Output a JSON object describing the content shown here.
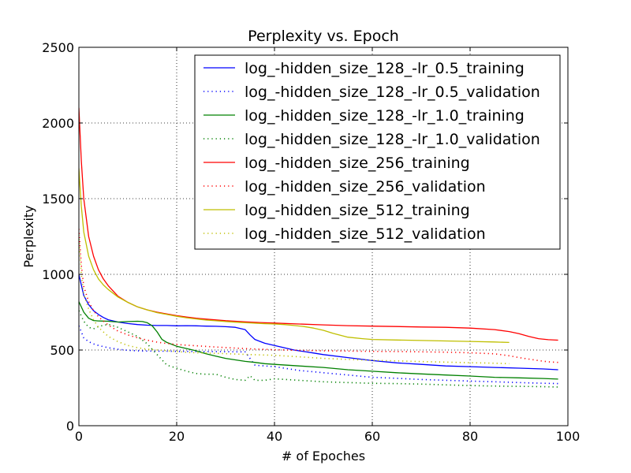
{
  "chart_data": {
    "type": "line",
    "title": "Perplexity vs. Epoch",
    "xlabel": "# of Epoches",
    "ylabel": "Perplexity",
    "xlim": [
      0,
      100
    ],
    "ylim": [
      0,
      2500
    ],
    "xticks": [
      "0",
      "20",
      "40",
      "60",
      "80",
      "100"
    ],
    "yticks": [
      "0",
      "500",
      "1000",
      "1500",
      "2000",
      "2500"
    ],
    "grid": true,
    "legend_position": "top-right",
    "series": [
      {
        "name": "log_-hidden_size_128_-lr_0.5_training",
        "color": "#0000ff",
        "style": "solid",
        "x": [
          0,
          1,
          2,
          3,
          4,
          5,
          6,
          8,
          10,
          12,
          14,
          16,
          18,
          20,
          22,
          24,
          26,
          28,
          30,
          32,
          34,
          35,
          36,
          38,
          40,
          42,
          44,
          46,
          48,
          50,
          55,
          60,
          65,
          70,
          75,
          80,
          85,
          90,
          95,
          98
        ],
        "y": [
          1000,
          860,
          800,
          760,
          735,
          715,
          700,
          685,
          675,
          668,
          664,
          662,
          662,
          660,
          661,
          660,
          658,
          657,
          654,
          650,
          635,
          600,
          570,
          545,
          530,
          515,
          500,
          490,
          480,
          470,
          450,
          430,
          415,
          405,
          395,
          390,
          385,
          380,
          375,
          370
        ]
      },
      {
        "name": "log_-hidden_size_128_-lr_0.5_validation",
        "color": "#0000ff",
        "style": "dotted",
        "x": [
          0,
          1,
          2,
          3,
          4,
          6,
          8,
          10,
          12,
          14,
          16,
          18,
          20,
          22,
          24,
          26,
          28,
          30,
          32,
          34,
          36,
          38,
          40,
          45,
          50,
          55,
          60,
          65,
          70,
          75,
          80,
          85,
          90,
          95,
          98
        ],
        "y": [
          660,
          580,
          555,
          540,
          530,
          515,
          505,
          498,
          495,
          493,
          492,
          492,
          491,
          491,
          490,
          490,
          490,
          489,
          488,
          488,
          400,
          395,
          390,
          365,
          350,
          335,
          320,
          313,
          305,
          300,
          295,
          290,
          285,
          280,
          278
        ]
      },
      {
        "name": "log_-hidden_size_128_-lr_1.0_training",
        "color": "#008000",
        "style": "solid",
        "x": [
          0,
          1,
          2,
          3,
          4,
          6,
          8,
          10,
          12,
          13,
          14,
          15,
          16,
          17,
          18,
          20,
          22,
          24,
          26,
          28,
          30,
          32,
          34,
          36,
          38,
          40,
          45,
          50,
          55,
          60,
          65,
          70,
          75,
          80,
          85,
          90,
          95,
          98
        ],
        "y": [
          820,
          750,
          710,
          695,
          692,
          690,
          685,
          688,
          690,
          688,
          680,
          660,
          620,
          570,
          550,
          525,
          510,
          495,
          475,
          460,
          445,
          435,
          425,
          418,
          410,
          405,
          395,
          385,
          370,
          360,
          350,
          342,
          335,
          328,
          320,
          316,
          312,
          308
        ]
      },
      {
        "name": "log_-hidden_size_128_-lr_1.0_validation",
        "color": "#008000",
        "style": "dotted",
        "x": [
          0,
          1,
          2,
          3,
          4,
          6,
          8,
          10,
          12,
          14,
          16,
          18,
          20,
          22,
          24,
          26,
          28,
          30,
          32,
          34,
          35,
          36,
          38,
          40,
          45,
          50,
          55,
          60,
          65,
          70,
          75,
          80,
          85,
          90,
          95,
          98
        ],
        "y": [
          760,
          690,
          650,
          640,
          655,
          670,
          650,
          620,
          590,
          540,
          470,
          400,
          380,
          360,
          345,
          340,
          340,
          320,
          305,
          300,
          330,
          300,
          300,
          310,
          300,
          290,
          285,
          280,
          278,
          275,
          270,
          265,
          262,
          260,
          258,
          255
        ]
      },
      {
        "name": "log_-hidden_size_256_training",
        "color": "#ff0000",
        "style": "solid",
        "x": [
          0,
          0.5,
          1,
          2,
          3,
          4,
          5,
          6,
          8,
          10,
          12,
          14,
          16,
          18,
          20,
          22,
          24,
          26,
          28,
          30,
          32,
          34,
          36,
          38,
          40,
          45,
          50,
          55,
          60,
          65,
          70,
          75,
          80,
          85,
          88,
          90,
          92,
          94,
          96,
          98
        ],
        "y": [
          2100,
          1750,
          1500,
          1250,
          1120,
          1030,
          970,
          925,
          855,
          815,
          785,
          765,
          750,
          738,
          727,
          718,
          710,
          704,
          699,
          694,
          690,
          686,
          683,
          680,
          678,
          672,
          666,
          661,
          658,
          655,
          652,
          650,
          645,
          635,
          622,
          608,
          590,
          575,
          568,
          565
        ]
      },
      {
        "name": "log_-hidden_size_256_validation",
        "color": "#ff0000",
        "style": "dotted",
        "x": [
          0,
          0.5,
          1,
          2,
          3,
          4,
          6,
          8,
          10,
          12,
          14,
          16,
          18,
          20,
          22,
          24,
          26,
          28,
          30,
          35,
          40,
          45,
          50,
          55,
          60,
          65,
          70,
          75,
          80,
          85,
          88,
          90,
          92,
          94,
          96,
          98
        ],
        "y": [
          1300,
          1060,
          920,
          820,
          760,
          720,
          665,
          625,
          600,
          580,
          565,
          552,
          543,
          537,
          532,
          528,
          524,
          520,
          516,
          508,
          502,
          498,
          495,
          493,
          491,
          490,
          488,
          486,
          482,
          475,
          462,
          450,
          440,
          430,
          422,
          418
        ]
      },
      {
        "name": "log_-hidden_size_512_training",
        "color": "#bfbf00",
        "style": "solid",
        "x": [
          0,
          0.5,
          1,
          2,
          3,
          4,
          5,
          6,
          8,
          10,
          12,
          14,
          16,
          18,
          20,
          22,
          24,
          26,
          28,
          30,
          32,
          34,
          36,
          38,
          40,
          42,
          44,
          46,
          48,
          50,
          52,
          55,
          58,
          60,
          65,
          70,
          75,
          80,
          85,
          88
        ],
        "y": [
          1700,
          1450,
          1280,
          1120,
          1030,
          970,
          930,
          900,
          850,
          815,
          785,
          765,
          747,
          735,
          723,
          713,
          705,
          698,
          693,
          688,
          684,
          680,
          677,
          674,
          672,
          668,
          662,
          655,
          645,
          630,
          610,
          585,
          575,
          570,
          566,
          563,
          560,
          557,
          553,
          550
        ]
      },
      {
        "name": "log_-hidden_size_512_validation",
        "color": "#bfbf00",
        "style": "dotted",
        "x": [
          0,
          0.5,
          1,
          2,
          3,
          4,
          6,
          8,
          10,
          12,
          14,
          16,
          18,
          20,
          22,
          24,
          26,
          28,
          30,
          35,
          40,
          45,
          50,
          55,
          60,
          65,
          70,
          75,
          80,
          85,
          88
        ],
        "y": [
          1260,
          1000,
          870,
          770,
          700,
          650,
          590,
          555,
          530,
          515,
          505,
          500,
          495,
          490,
          485,
          482,
          480,
          478,
          476,
          470,
          465,
          455,
          445,
          438,
          432,
          428,
          424,
          420,
          416,
          413,
          410
        ]
      }
    ]
  }
}
